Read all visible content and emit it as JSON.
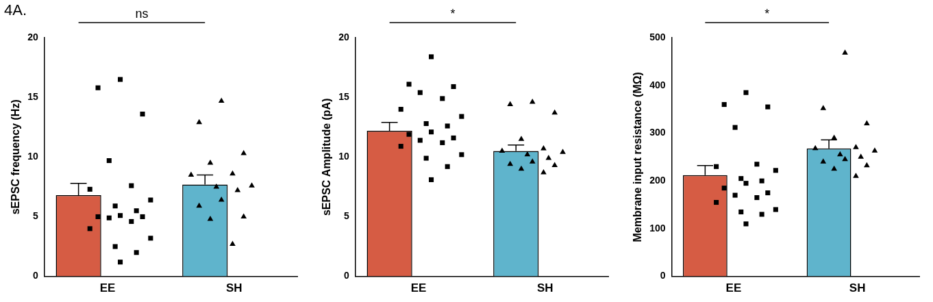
{
  "figure_label": "4A.",
  "chart_data": [
    {
      "type": "bar",
      "y_label": "sEPSC frequency (Hz)",
      "annotation": "ns",
      "categories": [
        "EE",
        "SH"
      ],
      "values": [
        6.8,
        7.7
      ],
      "errors": [
        1.0,
        0.8
      ],
      "colors": [
        "#d65c44",
        "#5fb4cc"
      ],
      "points": [
        {
          "marker": "square",
          "values": [
            16.5,
            15.8,
            13.6,
            9.7,
            7.6,
            7.3,
            6.4,
            5.9,
            5.5,
            5.1,
            5.0,
            5.0,
            4.9,
            4.6,
            4.0,
            3.2,
            2.5,
            2.0,
            1.2
          ]
        },
        {
          "marker": "triangle",
          "values": [
            14.7,
            12.9,
            10.3,
            9.5,
            8.6,
            8.5,
            7.6,
            7.5,
            7.2,
            6.4,
            5.9,
            5.0,
            4.8,
            2.7
          ]
        }
      ],
      "ylim": [
        0,
        20
      ],
      "yticks": [
        0,
        5,
        10,
        15,
        20
      ],
      "grid": false
    },
    {
      "type": "bar",
      "y_label": "sEPSC Amplitude (pA)",
      "annotation": "*",
      "categories": [
        "EE",
        "SH"
      ],
      "values": [
        12.2,
        10.5
      ],
      "errors": [
        0.7,
        0.5
      ],
      "colors": [
        "#d65c44",
        "#5fb4cc"
      ],
      "points": [
        {
          "marker": "square",
          "values": [
            18.4,
            16.1,
            15.9,
            15.4,
            14.9,
            14.0,
            13.4,
            12.8,
            12.6,
            12.1,
            11.9,
            11.6,
            11.4,
            11.2,
            10.9,
            10.2,
            9.9,
            9.2,
            8.1
          ]
        },
        {
          "marker": "triangle",
          "values": [
            14.6,
            14.4,
            13.7,
            11.5,
            10.7,
            10.5,
            10.4,
            10.2,
            9.9,
            9.6,
            9.4,
            9.3,
            9.0,
            8.7
          ]
        }
      ],
      "ylim": [
        0,
        20
      ],
      "yticks": [
        0,
        5,
        10,
        15,
        20
      ],
      "grid": false
    },
    {
      "type": "bar",
      "y_label": "Membrane input resistance (MΩ)",
      "annotation": "*",
      "categories": [
        "EE",
        "SH"
      ],
      "values": [
        212,
        268
      ],
      "errors": [
        20,
        18
      ],
      "colors": [
        "#d65c44",
        "#5fb4cc"
      ],
      "points": [
        {
          "marker": "square",
          "values": [
            385,
            360,
            355,
            312,
            235,
            230,
            222,
            205,
            200,
            195,
            185,
            175,
            170,
            165,
            155,
            140,
            135,
            130,
            110
          ]
        },
        {
          "marker": "triangle",
          "values": [
            468,
            352,
            320,
            290,
            270,
            268,
            263,
            255,
            250,
            245,
            240,
            232,
            225,
            210
          ]
        }
      ],
      "ylim": [
        0,
        500
      ],
      "yticks": [
        0,
        100,
        200,
        300,
        400,
        500
      ],
      "grid": false
    }
  ]
}
